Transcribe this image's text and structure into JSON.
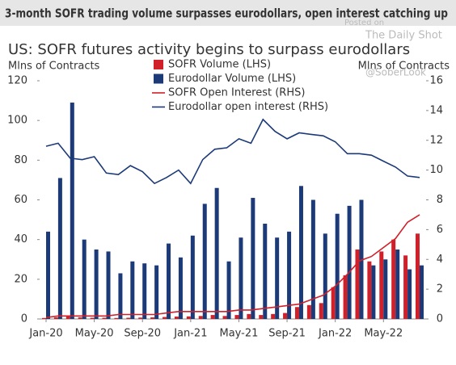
{
  "chart_data": {
    "type": "combo",
    "title": "3-month SOFR trading volume surpasses eurodollars, open interest catching up",
    "subtitle": "US: SOFR futures activity begins to surpass eurodollars",
    "ylabel": "Mlns of Contracts",
    "y2label": "Mlns of Contracts",
    "annotations": [
      "Posted on",
      "The Daily Shot",
      "@SoberLook"
    ],
    "categories": [
      "Jan-20",
      null,
      null,
      null,
      "May-20",
      null,
      null,
      null,
      "Sep-20",
      null,
      null,
      null,
      "Jan-21",
      null,
      null,
      null,
      "May-21",
      null,
      null,
      null,
      "Sep-21",
      null,
      null,
      null,
      "Jan-22",
      null,
      null,
      null,
      "May-22",
      null,
      null,
      null
    ],
    "ylim": [
      0,
      120
    ],
    "yticks": [
      0,
      20,
      40,
      60,
      80,
      100,
      120
    ],
    "y2lim": [
      0,
      16
    ],
    "y2ticks": [
      0,
      2,
      4,
      6,
      8,
      10,
      12,
      14,
      16
    ],
    "series": [
      {
        "name": "SOFR Volume (LHS)",
        "type": "bar",
        "color": "#d0202a",
        "values": [
          0.5,
          0.8,
          1.5,
          0.8,
          0.6,
          0.6,
          0.5,
          0.6,
          0.7,
          0.8,
          1.0,
          1.2,
          1.3,
          1.5,
          2.0,
          1.5,
          2.0,
          2.5,
          2.0,
          2.5,
          3,
          6,
          7,
          8,
          16,
          22,
          35,
          29,
          34,
          40,
          32,
          43
        ]
      },
      {
        "name": "Eurodollar Volume (LHS)",
        "type": "bar",
        "color": "#1c3a78",
        "values": [
          44,
          71,
          109,
          40,
          35,
          34,
          23,
          29,
          28,
          27,
          38,
          31,
          42,
          58,
          66,
          29,
          41,
          61,
          48,
          41,
          44,
          67,
          60,
          43,
          53,
          57,
          60,
          27,
          30,
          35,
          25,
          27
        ]
      },
      {
        "name": "SOFR Open Interest (RHS)",
        "type": "line",
        "axis": "y2",
        "color": "#d0202a",
        "values": [
          0.1,
          0.2,
          0.2,
          0.2,
          0.2,
          0.2,
          0.3,
          0.3,
          0.3,
          0.3,
          0.4,
          0.5,
          0.5,
          0.5,
          0.5,
          0.5,
          0.6,
          0.6,
          0.7,
          0.8,
          0.9,
          1.0,
          1.3,
          1.6,
          2.2,
          3.0,
          3.9,
          4.2,
          4.8,
          5.4,
          6.5,
          7.0
        ]
      },
      {
        "name": "Eurodollar open interest (RHS)",
        "type": "line",
        "axis": "y2",
        "color": "#1c3a78",
        "values": [
          11.6,
          11.8,
          10.8,
          10.7,
          10.9,
          9.8,
          9.7,
          10.3,
          9.9,
          9.1,
          9.5,
          10.0,
          9.1,
          10.7,
          11.4,
          11.5,
          12.1,
          11.8,
          13.4,
          12.6,
          12.1,
          12.5,
          12.4,
          12.3,
          11.9,
          11.1,
          11.1,
          11.0,
          10.6,
          10.2,
          9.6,
          9.5
        ]
      }
    ]
  }
}
